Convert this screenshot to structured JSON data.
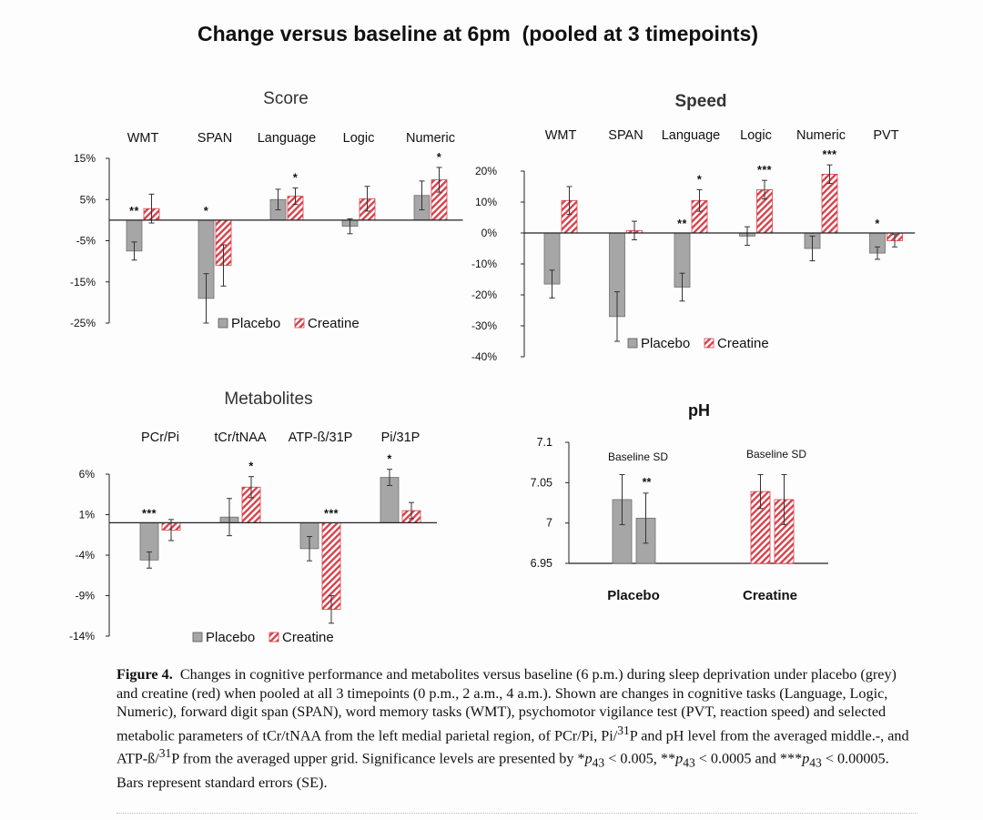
{
  "page": {
    "main_title": "Change versus baseline at 6pm  (pooled at 3 timepoints)",
    "legend": {
      "placebo": "Placebo",
      "creatine": "Creatine"
    },
    "colors": {
      "placebo": "#a6a6a6",
      "creatine_stripe": "#d7414b",
      "axis": "#222222"
    },
    "caption": {
      "label": "Figure 4.",
      "text": "Changes in cognitive performance and metabolites versus baseline (6 p.m.) during sleep deprivation under placebo (grey) and creatine (red) when pooled at all 3 timepoints (0 p.m., 2 a.m., 4 a.m.). Shown are changes in cognitive tasks (Language, Logic, Numeric), forward digit span (SPAN), word memory tasks (WMT), psychomotor vigilance test (PVT, reaction speed) and selected metabolic parameters of tCr/tNAA from the left medial parietal region, of PCr/Pi, Pi/",
      "sup_31": "31",
      "text_2": "P and pH level from the averaged middle.-, and ATP-ß/",
      "text_3": "P from the averaged upper grid. Significance levels are presented by *",
      "p": "p",
      "sub_43": "43",
      "lt_1": " < 0.005, **",
      "lt_2": " < 0.0005 and ***",
      "lt_3": " < 0.00005. Bars represent standard errors (SE)."
    }
  },
  "chart_data": [
    {
      "id": "score",
      "type": "bar",
      "title": "Score",
      "categories": [
        "WMT",
        "SPAN",
        "Language",
        "Logic",
        "Numeric"
      ],
      "yticks": [
        "15%",
        "5%",
        "-5%",
        "-15%",
        "-25%"
      ],
      "ytick_values": [
        15,
        5,
        -5,
        -15,
        -25
      ],
      "ylim": [
        -25,
        15
      ],
      "legend_position": "bottom",
      "series": [
        {
          "name": "Placebo",
          "values": [
            -7.5,
            -19,
            5,
            -1.5,
            6
          ],
          "errors": [
            2.2,
            6,
            2.5,
            1.8,
            3.5
          ]
        },
        {
          "name": "Creatine",
          "values": [
            2.8,
            -11,
            5.8,
            5.2,
            9.8
          ],
          "errors": [
            3.5,
            5,
            2,
            3,
            3
          ]
        }
      ],
      "significance": [
        {
          "category": 0,
          "series": 0,
          "label": "**"
        },
        {
          "category": 1,
          "series": 0,
          "label": "*"
        },
        {
          "category": 2,
          "series": 1,
          "label": "*"
        },
        {
          "category": 4,
          "series": 1,
          "label": "*"
        }
      ]
    },
    {
      "id": "speed",
      "type": "bar",
      "title": "Speed",
      "categories": [
        "WMT",
        "SPAN",
        "Language",
        "Logic",
        "Numeric",
        "PVT"
      ],
      "yticks": [
        "20%",
        "10%",
        "0%",
        "-10%",
        "-20%",
        "-30%",
        "-40%"
      ],
      "ytick_values": [
        20,
        10,
        0,
        -10,
        -20,
        -30,
        -40
      ],
      "ylim": [
        -40,
        20
      ],
      "legend_position": "bottom",
      "series": [
        {
          "name": "Placebo",
          "values": [
            -16.5,
            -27,
            -17.5,
            -1,
            -5,
            -6.5
          ],
          "errors": [
            4.5,
            8,
            4.5,
            3,
            4,
            2
          ]
        },
        {
          "name": "Creatine",
          "values": [
            10.5,
            0.8,
            10.5,
            14,
            19,
            -2.5
          ],
          "errors": [
            4.5,
            3,
            3.5,
            3,
            3,
            2
          ]
        }
      ],
      "significance": [
        {
          "category": 2,
          "series": 0,
          "label": "**"
        },
        {
          "category": 2,
          "series": 1,
          "label": "*"
        },
        {
          "category": 3,
          "series": 1,
          "label": "***"
        },
        {
          "category": 4,
          "series": 1,
          "label": "***"
        },
        {
          "category": 5,
          "series": 0,
          "label": "*"
        }
      ]
    },
    {
      "id": "metabolites",
      "type": "bar",
      "title": "Metabolites",
      "categories": [
        "PCr/Pi",
        "tCr/tNAA",
        "ATP-ß/31P",
        "Pi/31P"
      ],
      "yticks": [
        "6%",
        "1%",
        "-4%",
        "-9%",
        "-14%"
      ],
      "ytick_values": [
        6,
        1,
        -4,
        -9,
        -14
      ],
      "ylim": [
        -14,
        6
      ],
      "legend_position": "bottom",
      "series": [
        {
          "name": "Placebo",
          "values": [
            -4.6,
            0.7,
            -3.2,
            5.6
          ],
          "errors": [
            1,
            2.3,
            1.5,
            1
          ]
        },
        {
          "name": "Creatine",
          "values": [
            -0.9,
            4.4,
            -10.7,
            1.5
          ],
          "errors": [
            1.3,
            1.3,
            1.7,
            1
          ]
        }
      ],
      "significance": [
        {
          "category": 0,
          "series": 0,
          "label": "***"
        },
        {
          "category": 1,
          "series": 1,
          "label": "*"
        },
        {
          "category": 2,
          "series": 1,
          "label": "***"
        },
        {
          "category": 3,
          "series": 0,
          "label": "*"
        }
      ]
    },
    {
      "id": "ph",
      "type": "bar",
      "title": "pH",
      "categories": [
        "Placebo",
        "Creatine"
      ],
      "yticks": [
        "7.1",
        "7.05",
        "7",
        "6.95"
      ],
      "ytick_values": [
        7.1,
        7.05,
        7,
        6.95
      ],
      "ylim": [
        6.95,
        7.1
      ],
      "baseline_label": "Baseline SD",
      "groups": [
        {
          "name": "Placebo",
          "bars": [
            {
              "kind": "placebo",
              "value": 7.029,
              "error": 0.031,
              "sig": ""
            },
            {
              "kind": "placebo",
              "value": 7.006,
              "error": 0.031,
              "sig": "**"
            }
          ]
        },
        {
          "name": "Creatine",
          "bars": [
            {
              "kind": "creatine",
              "value": 7.039,
              "error": 0.021,
              "sig": ""
            },
            {
              "kind": "creatine",
              "value": 7.029,
              "error": 0.031,
              "sig": ""
            }
          ]
        }
      ]
    }
  ]
}
